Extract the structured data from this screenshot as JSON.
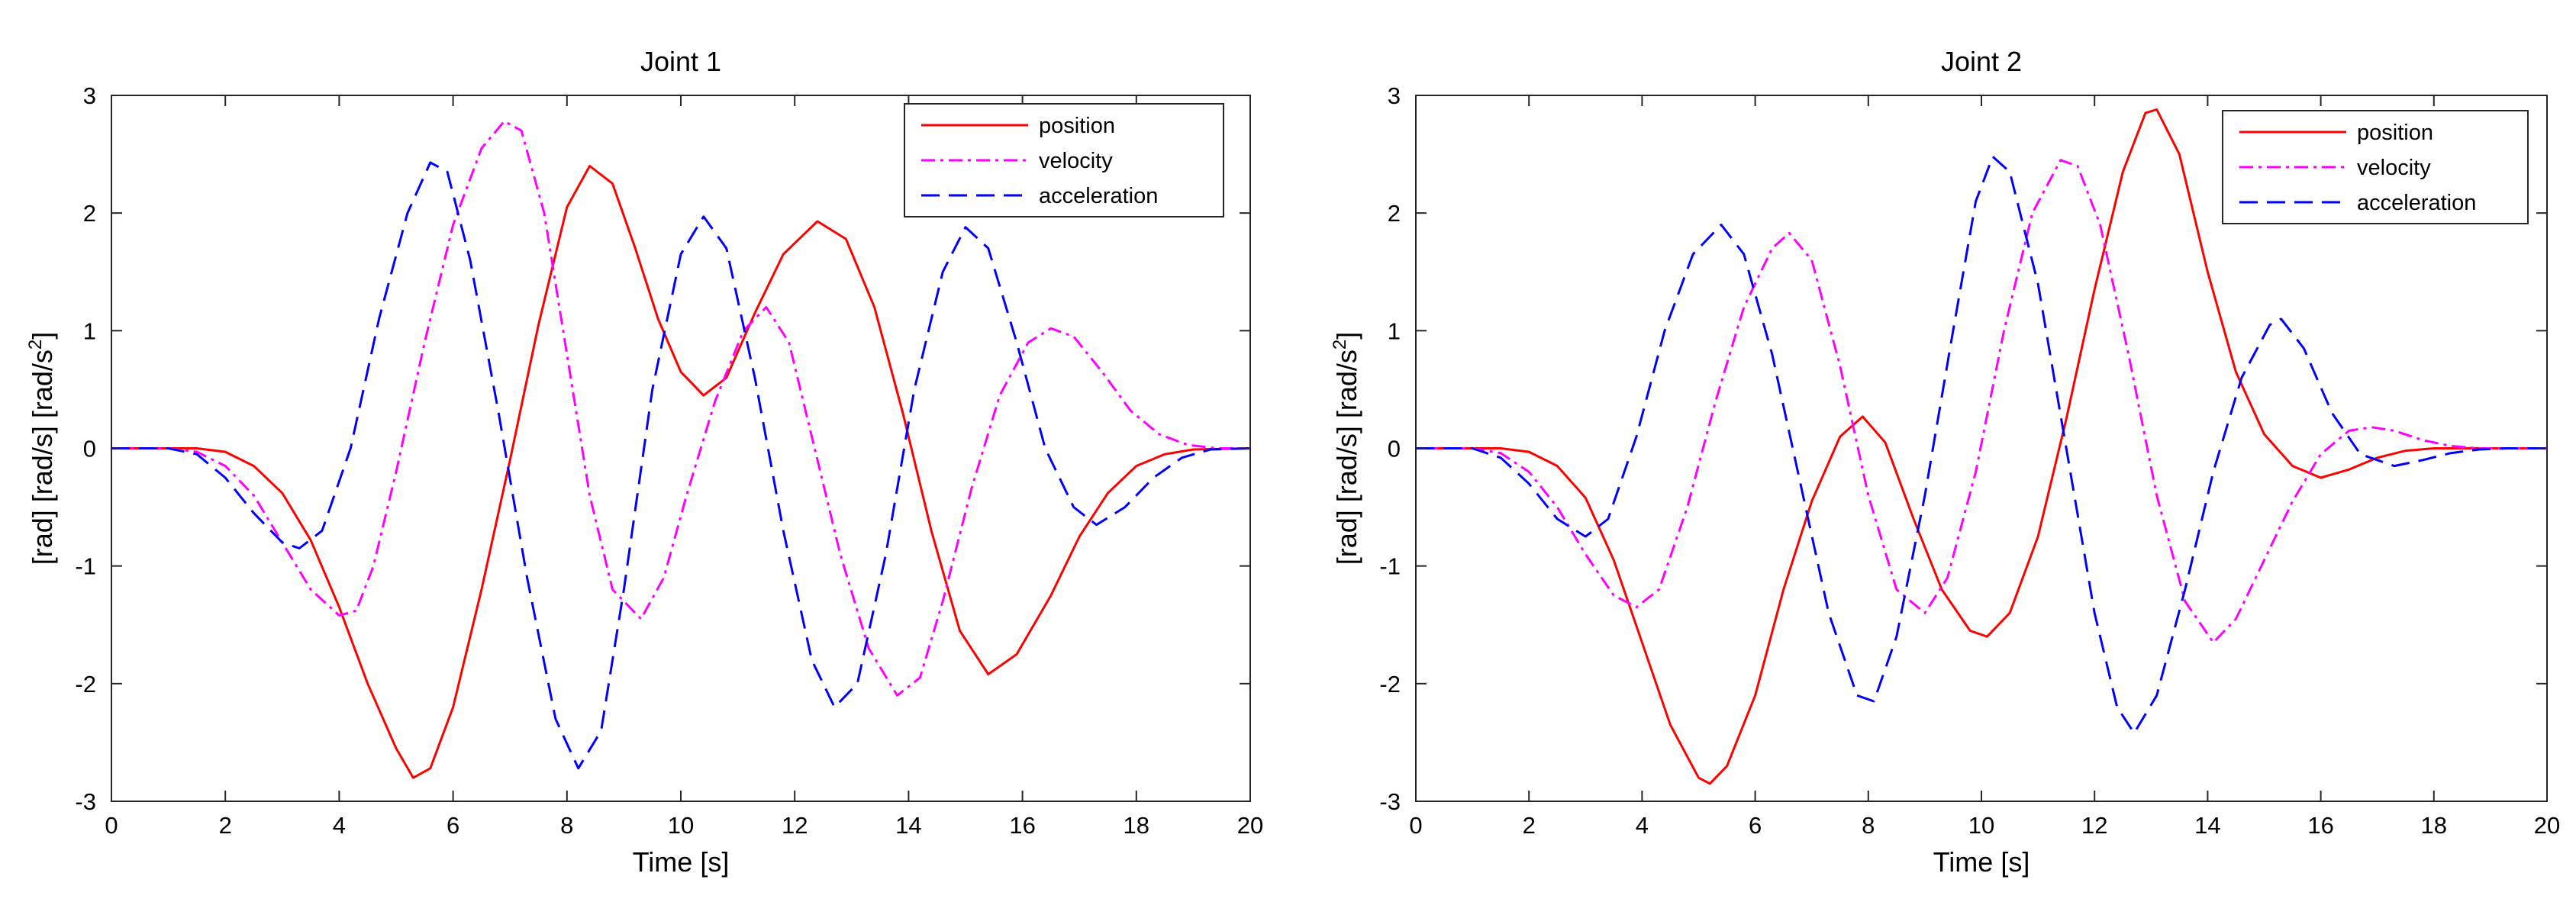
{
  "chart_data": [
    {
      "type": "line",
      "title": "Joint 1",
      "xlabel": "Time [s]",
      "ylabel_parts": [
        "[rad]  [rad/s]  [rad/s",
        "2",
        "]"
      ],
      "xlim": [
        0,
        20
      ],
      "ylim": [
        -3,
        3
      ],
      "xticks": [
        0,
        2,
        4,
        6,
        8,
        10,
        12,
        14,
        16,
        18,
        20
      ],
      "yticks": [
        -3,
        -2,
        -1,
        0,
        1,
        2,
        3
      ],
      "xtick_labels": [
        "0",
        "2",
        "4",
        "6",
        "8",
        "10",
        "12",
        "14",
        "16",
        "18",
        "20"
      ],
      "ytick_labels": [
        "-3",
        "-2",
        "-1",
        "0",
        "1",
        "2",
        "3"
      ],
      "grid": false,
      "legend": "top-right",
      "series": [
        {
          "name": "position",
          "color": "#ff0000",
          "style": "solid",
          "points": [
            [
              0,
              0
            ],
            [
              1.5,
              0
            ],
            [
              2,
              -0.03
            ],
            [
              2.5,
              -0.15
            ],
            [
              3,
              -0.38
            ],
            [
              3.5,
              -0.78
            ],
            [
              4,
              -1.35
            ],
            [
              4.5,
              -2.0
            ],
            [
              5,
              -2.55
            ],
            [
              5.3,
              -2.8
            ],
            [
              5.6,
              -2.72
            ],
            [
              6,
              -2.2
            ],
            [
              6.5,
              -1.2
            ],
            [
              7,
              -0.1
            ],
            [
              7.5,
              1.05
            ],
            [
              8,
              2.05
            ],
            [
              8.4,
              2.4
            ],
            [
              8.8,
              2.25
            ],
            [
              9.2,
              1.7
            ],
            [
              9.6,
              1.1
            ],
            [
              10,
              0.65
            ],
            [
              10.4,
              0.45
            ],
            [
              10.8,
              0.6
            ],
            [
              11.3,
              1.15
            ],
            [
              11.8,
              1.65
            ],
            [
              12.4,
              1.93
            ],
            [
              12.9,
              1.78
            ],
            [
              13.4,
              1.2
            ],
            [
              13.9,
              0.3
            ],
            [
              14.4,
              -0.7
            ],
            [
              14.9,
              -1.55
            ],
            [
              15.4,
              -1.92
            ],
            [
              15.9,
              -1.75
            ],
            [
              16.5,
              -1.25
            ],
            [
              17,
              -0.75
            ],
            [
              17.5,
              -0.38
            ],
            [
              18,
              -0.15
            ],
            [
              18.5,
              -0.05
            ],
            [
              19,
              -0.01
            ],
            [
              20,
              0
            ]
          ]
        },
        {
          "name": "velocity",
          "color": "#ff00ff",
          "style": "dashdot",
          "points": [
            [
              0,
              0
            ],
            [
              1,
              0
            ],
            [
              1.5,
              -0.03
            ],
            [
              2,
              -0.15
            ],
            [
              2.5,
              -0.4
            ],
            [
              3,
              -0.8
            ],
            [
              3.5,
              -1.2
            ],
            [
              4,
              -1.42
            ],
            [
              4.3,
              -1.38
            ],
            [
              4.6,
              -1.0
            ],
            [
              5,
              -0.2
            ],
            [
              5.5,
              0.9
            ],
            [
              6,
              1.9
            ],
            [
              6.5,
              2.55
            ],
            [
              6.9,
              2.78
            ],
            [
              7.2,
              2.7
            ],
            [
              7.6,
              2.0
            ],
            [
              8,
              0.8
            ],
            [
              8.4,
              -0.4
            ],
            [
              8.8,
              -1.2
            ],
            [
              9.3,
              -1.45
            ],
            [
              9.7,
              -1.1
            ],
            [
              10.1,
              -0.4
            ],
            [
              10.6,
              0.4
            ],
            [
              11.1,
              1.0
            ],
            [
              11.5,
              1.2
            ],
            [
              11.9,
              0.9
            ],
            [
              12.3,
              0.1
            ],
            [
              12.8,
              -0.9
            ],
            [
              13.3,
              -1.7
            ],
            [
              13.8,
              -2.1
            ],
            [
              14.2,
              -1.95
            ],
            [
              14.6,
              -1.3
            ],
            [
              15.1,
              -0.35
            ],
            [
              15.6,
              0.45
            ],
            [
              16.1,
              0.9
            ],
            [
              16.5,
              1.02
            ],
            [
              16.9,
              0.95
            ],
            [
              17.4,
              0.65
            ],
            [
              17.9,
              0.32
            ],
            [
              18.4,
              0.12
            ],
            [
              18.9,
              0.03
            ],
            [
              19.4,
              0
            ],
            [
              20,
              0
            ]
          ]
        },
        {
          "name": "acceleration",
          "color": "#0000ff",
          "style": "dashed",
          "points": [
            [
              0,
              0
            ],
            [
              1,
              0
            ],
            [
              1.5,
              -0.05
            ],
            [
              2,
              -0.25
            ],
            [
              2.5,
              -0.55
            ],
            [
              3,
              -0.8
            ],
            [
              3.3,
              -0.85
            ],
            [
              3.7,
              -0.7
            ],
            [
              4.2,
              0.0
            ],
            [
              4.7,
              1.1
            ],
            [
              5.2,
              2.0
            ],
            [
              5.6,
              2.43
            ],
            [
              5.9,
              2.35
            ],
            [
              6.3,
              1.6
            ],
            [
              6.8,
              0.3
            ],
            [
              7.3,
              -1.1
            ],
            [
              7.8,
              -2.3
            ],
            [
              8.2,
              -2.72
            ],
            [
              8.6,
              -2.4
            ],
            [
              9.0,
              -1.2
            ],
            [
              9.5,
              0.5
            ],
            [
              10.0,
              1.65
            ],
            [
              10.4,
              1.97
            ],
            [
              10.8,
              1.7
            ],
            [
              11.3,
              0.6
            ],
            [
              11.8,
              -0.7
            ],
            [
              12.3,
              -1.8
            ],
            [
              12.7,
              -2.2
            ],
            [
              13.1,
              -2.0
            ],
            [
              13.6,
              -0.9
            ],
            [
              14.1,
              0.5
            ],
            [
              14.6,
              1.5
            ],
            [
              15.0,
              1.88
            ],
            [
              15.4,
              1.7
            ],
            [
              15.9,
              0.9
            ],
            [
              16.4,
              0.0
            ],
            [
              16.9,
              -0.5
            ],
            [
              17.3,
              -0.65
            ],
            [
              17.8,
              -0.5
            ],
            [
              18.3,
              -0.25
            ],
            [
              18.8,
              -0.08
            ],
            [
              19.3,
              -0.01
            ],
            [
              20,
              0
            ]
          ]
        }
      ]
    },
    {
      "type": "line",
      "title": "Joint 2",
      "xlabel": "Time [s]",
      "ylabel_parts": [
        "[rad]  [rad/s]  [rad/s",
        "2",
        "]"
      ],
      "xlim": [
        0,
        20
      ],
      "ylim": [
        -3,
        3
      ],
      "xticks": [
        0,
        2,
        4,
        6,
        8,
        10,
        12,
        14,
        16,
        18,
        20
      ],
      "yticks": [
        -3,
        -2,
        -1,
        0,
        1,
        2,
        3
      ],
      "xtick_labels": [
        "0",
        "2",
        "4",
        "6",
        "8",
        "10",
        "12",
        "14",
        "16",
        "18",
        "20"
      ],
      "ytick_labels": [
        "-3",
        "-2",
        "-1",
        "0",
        "1",
        "2",
        "3"
      ],
      "grid": false,
      "legend": "top-right",
      "series": [
        {
          "name": "position",
          "color": "#ff0000",
          "style": "solid",
          "points": [
            [
              0,
              0
            ],
            [
              1.5,
              0
            ],
            [
              2,
              -0.03
            ],
            [
              2.5,
              -0.15
            ],
            [
              3,
              -0.42
            ],
            [
              3.5,
              -0.95
            ],
            [
              4,
              -1.65
            ],
            [
              4.5,
              -2.35
            ],
            [
              5,
              -2.8
            ],
            [
              5.2,
              -2.85
            ],
            [
              5.5,
              -2.7
            ],
            [
              6,
              -2.1
            ],
            [
              6.5,
              -1.2
            ],
            [
              7,
              -0.45
            ],
            [
              7.5,
              0.1
            ],
            [
              7.9,
              0.27
            ],
            [
              8.3,
              0.05
            ],
            [
              8.8,
              -0.6
            ],
            [
              9.3,
              -1.2
            ],
            [
              9.8,
              -1.55
            ],
            [
              10.1,
              -1.6
            ],
            [
              10.5,
              -1.4
            ],
            [
              11,
              -0.75
            ],
            [
              11.5,
              0.25
            ],
            [
              12,
              1.35
            ],
            [
              12.5,
              2.35
            ],
            [
              12.9,
              2.85
            ],
            [
              13.1,
              2.88
            ],
            [
              13.5,
              2.5
            ],
            [
              14,
              1.5
            ],
            [
              14.5,
              0.65
            ],
            [
              15,
              0.12
            ],
            [
              15.5,
              -0.15
            ],
            [
              16,
              -0.25
            ],
            [
              16.5,
              -0.18
            ],
            [
              17,
              -0.08
            ],
            [
              17.5,
              -0.02
            ],
            [
              18,
              0
            ],
            [
              20,
              0
            ]
          ]
        },
        {
          "name": "velocity",
          "color": "#ff00ff",
          "style": "dashdot",
          "points": [
            [
              0,
              0
            ],
            [
              1,
              0
            ],
            [
              1.5,
              -0.04
            ],
            [
              2,
              -0.2
            ],
            [
              2.5,
              -0.5
            ],
            [
              3,
              -0.9
            ],
            [
              3.5,
              -1.25
            ],
            [
              3.9,
              -1.35
            ],
            [
              4.3,
              -1.2
            ],
            [
              4.8,
              -0.5
            ],
            [
              5.3,
              0.4
            ],
            [
              5.8,
              1.2
            ],
            [
              6.3,
              1.7
            ],
            [
              6.6,
              1.83
            ],
            [
              7,
              1.6
            ],
            [
              7.5,
              0.7
            ],
            [
              8,
              -0.4
            ],
            [
              8.5,
              -1.2
            ],
            [
              9,
              -1.4
            ],
            [
              9.4,
              -1.1
            ],
            [
              9.9,
              -0.2
            ],
            [
              10.4,
              1.0
            ],
            [
              10.9,
              2.0
            ],
            [
              11.4,
              2.45
            ],
            [
              11.7,
              2.4
            ],
            [
              12.1,
              1.9
            ],
            [
              12.6,
              0.8
            ],
            [
              13.1,
              -0.4
            ],
            [
              13.6,
              -1.3
            ],
            [
              14.1,
              -1.65
            ],
            [
              14.5,
              -1.45
            ],
            [
              15,
              -0.95
            ],
            [
              15.5,
              -0.45
            ],
            [
              16,
              -0.05
            ],
            [
              16.5,
              0.15
            ],
            [
              16.9,
              0.18
            ],
            [
              17.3,
              0.15
            ],
            [
              17.8,
              0.07
            ],
            [
              18.3,
              0.02
            ],
            [
              18.8,
              0
            ],
            [
              20,
              0
            ]
          ]
        },
        {
          "name": "acceleration",
          "color": "#0000ff",
          "style": "dashed",
          "points": [
            [
              0,
              0
            ],
            [
              1,
              0
            ],
            [
              1.5,
              -0.08
            ],
            [
              2,
              -0.3
            ],
            [
              2.5,
              -0.6
            ],
            [
              3,
              -0.75
            ],
            [
              3.4,
              -0.6
            ],
            [
              3.9,
              0.1
            ],
            [
              4.4,
              1.0
            ],
            [
              4.9,
              1.65
            ],
            [
              5.4,
              1.9
            ],
            [
              5.8,
              1.65
            ],
            [
              6.3,
              0.8
            ],
            [
              6.8,
              -0.3
            ],
            [
              7.3,
              -1.4
            ],
            [
              7.8,
              -2.1
            ],
            [
              8.1,
              -2.15
            ],
            [
              8.5,
              -1.6
            ],
            [
              9,
              -0.4
            ],
            [
              9.5,
              1.0
            ],
            [
              9.9,
              2.1
            ],
            [
              10.2,
              2.48
            ],
            [
              10.5,
              2.35
            ],
            [
              11,
              1.4
            ],
            [
              11.5,
              0.0
            ],
            [
              12,
              -1.4
            ],
            [
              12.4,
              -2.2
            ],
            [
              12.7,
              -2.42
            ],
            [
              13.1,
              -2.1
            ],
            [
              13.6,
              -1.2
            ],
            [
              14.1,
              -0.2
            ],
            [
              14.6,
              0.6
            ],
            [
              15.1,
              1.05
            ],
            [
              15.3,
              1.1
            ],
            [
              15.7,
              0.85
            ],
            [
              16.2,
              0.3
            ],
            [
              16.7,
              -0.05
            ],
            [
              17.3,
              -0.15
            ],
            [
              17.8,
              -0.1
            ],
            [
              18.3,
              -0.04
            ],
            [
              18.8,
              -0.01
            ],
            [
              19.3,
              0
            ],
            [
              20,
              0
            ]
          ]
        }
      ]
    }
  ]
}
